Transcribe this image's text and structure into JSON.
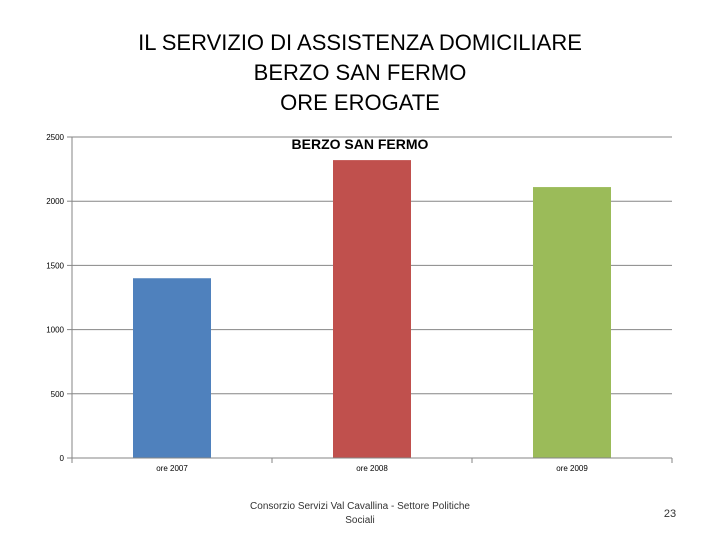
{
  "slide": {
    "title_lines": [
      "IL SERVIZIO DI ASSISTENZA DOMICILIARE",
      "BERZO SAN FERMO",
      "ORE EROGATE"
    ],
    "footer": "Consorzio Servizi Val Cavallina - Settore Politiche Sociali",
    "page_number": "23"
  },
  "chart_data": {
    "type": "bar",
    "title": "BERZO SAN FERMO",
    "categories": [
      "ore 2007",
      "ore 2008",
      "ore 2009"
    ],
    "values": [
      1400,
      2320,
      2110
    ],
    "colors": [
      "#4f81bd",
      "#c0504d",
      "#9bbb59"
    ],
    "ylim": [
      0,
      2500
    ],
    "yticks": [
      0,
      500,
      1000,
      1500,
      2000,
      2500
    ],
    "grid": true,
    "legend": "none"
  }
}
